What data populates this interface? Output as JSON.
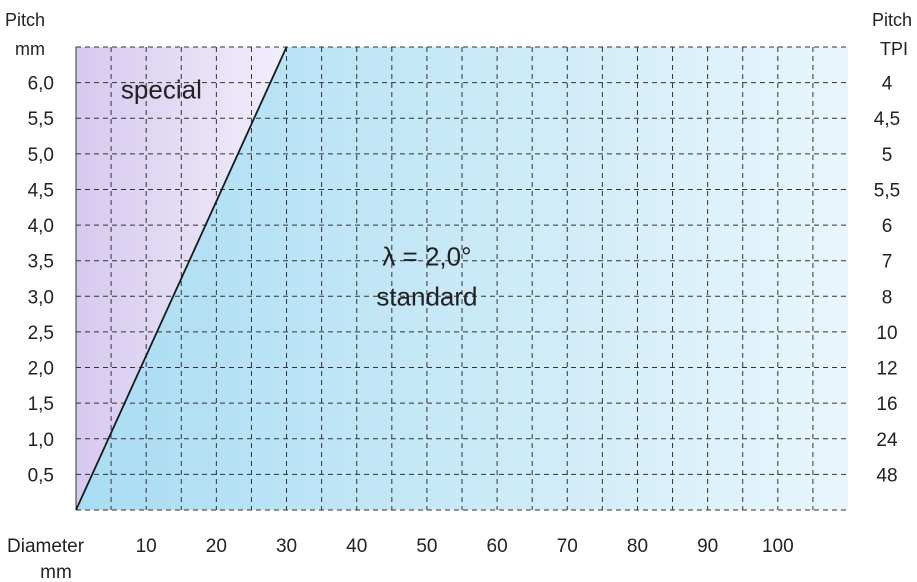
{
  "chart_data": {
    "type": "area",
    "xlabel": "Diameter",
    "xunit": "mm",
    "y_left_label": "Pitch",
    "y_left_unit": "mm",
    "y_right_label": "Pitch",
    "y_right_unit": "TPI",
    "x_ticks": [
      "10",
      "20",
      "30",
      "40",
      "50",
      "60",
      "70",
      "80",
      "90",
      "100"
    ],
    "x_tick_values": [
      10,
      20,
      30,
      40,
      50,
      60,
      70,
      80,
      90,
      100
    ],
    "xlim": [
      0,
      110
    ],
    "y_ticks_mm": [
      "0,5",
      "1,0",
      "1,5",
      "2,0",
      "2,5",
      "3,0",
      "3,5",
      "4,0",
      "4,5",
      "5,0",
      "5,5",
      "6,0"
    ],
    "y_tick_values_mm": [
      0.5,
      1.0,
      1.5,
      2.0,
      2.5,
      3.0,
      3.5,
      4.0,
      4.5,
      5.0,
      5.5,
      6.0
    ],
    "y_ticks_tpi": [
      "48",
      "24",
      "16",
      "12",
      "10",
      "8",
      "7",
      "6",
      "5,5",
      "5",
      "4,5",
      "4"
    ],
    "ylim": [
      0,
      6.5
    ],
    "grid": true,
    "grid_style": "dashed",
    "boundary_line": {
      "x": [
        0,
        30
      ],
      "y": [
        0,
        6.5
      ]
    },
    "regions": [
      {
        "label": "special",
        "side": "above-left of boundary",
        "color_start": "#d6c9ef",
        "color_end": "#f2effb"
      },
      {
        "label_line1": "λ = 2,0°",
        "label_line2": "standard",
        "side": "below-right of boundary",
        "color_start": "#a9dcf3",
        "color_end": "#e8f6fc"
      }
    ]
  }
}
